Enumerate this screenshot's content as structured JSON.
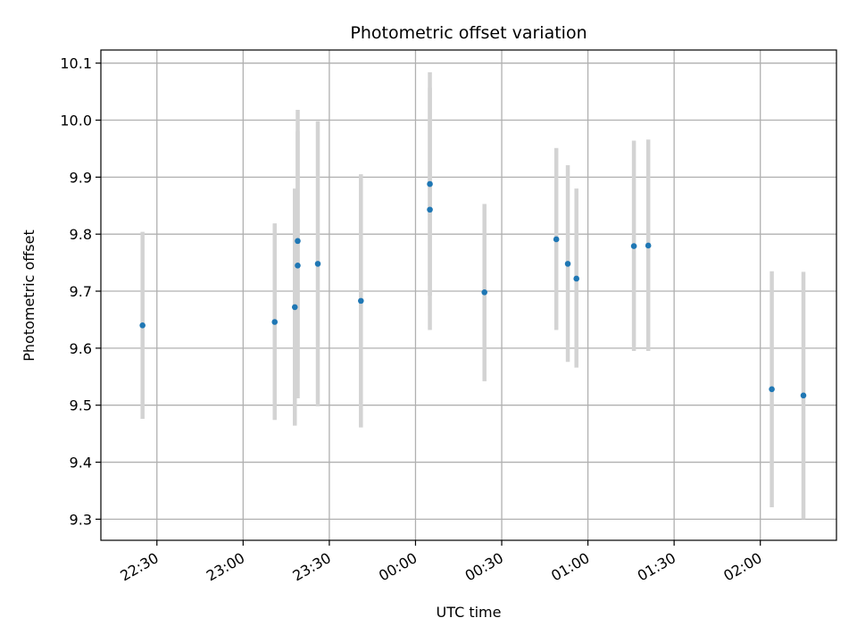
{
  "chart_data": {
    "type": "scatter",
    "title": "Photometric offset variation",
    "xlabel": "UTC time",
    "ylabel": "Photometric offset",
    "grid": true,
    "x_tick_labels": [
      "22:30",
      "23:00",
      "23:30",
      "00:00",
      "00:30",
      "01:00",
      "01:30",
      "02:00"
    ],
    "x_tick_minutes": [
      -90,
      -60,
      -30,
      0,
      30,
      60,
      90,
      120
    ],
    "xlim_minutes": [
      -109.5,
      146.5
    ],
    "y_ticks": [
      9.3,
      9.4,
      9.5,
      9.6,
      9.7,
      9.8,
      9.9,
      10.0,
      10.1
    ],
    "y_tick_labels": [
      "9.3",
      "9.4",
      "9.5",
      "9.6",
      "9.7",
      "9.8",
      "9.9",
      "10.0",
      "10.1"
    ],
    "ylim": [
      9.263,
      10.123
    ],
    "colors": {
      "point": "#1f77b4",
      "errorbar": "#d3d3d3",
      "grid": "#b0b0b0"
    },
    "points": [
      {
        "t": "22:25",
        "y": 9.64,
        "ylo": 9.476,
        "yhi": 9.804
      },
      {
        "t": "23:11",
        "y": 9.646,
        "ylo": 9.474,
        "yhi": 9.819
      },
      {
        "t": "23:18",
        "y": 9.672,
        "ylo": 9.464,
        "yhi": 9.88
      },
      {
        "t": "23:19",
        "y": 9.745,
        "ylo": 9.56,
        "yhi": 9.98
      },
      {
        "t": "23:19",
        "y": 9.788,
        "ylo": 9.512,
        "yhi": 10.018
      },
      {
        "t": "23:26",
        "y": 9.748,
        "ylo": 9.498,
        "yhi": 9.998
      },
      {
        "t": "23:41",
        "y": 9.683,
        "ylo": 9.461,
        "yhi": 9.905
      },
      {
        "t": "00:05",
        "y": 9.888,
        "ylo": 9.692,
        "yhi": 10.084
      },
      {
        "t": "00:05",
        "y": 9.843,
        "ylo": 9.632,
        "yhi": 10.057
      },
      {
        "t": "00:24",
        "y": 9.698,
        "ylo": 9.542,
        "yhi": 9.853
      },
      {
        "t": "00:49",
        "y": 9.791,
        "ylo": 9.632,
        "yhi": 9.951
      },
      {
        "t": "00:53",
        "y": 9.748,
        "ylo": 9.576,
        "yhi": 9.921
      },
      {
        "t": "00:56",
        "y": 9.722,
        "ylo": 9.566,
        "yhi": 9.88
      },
      {
        "t": "01:16",
        "y": 9.779,
        "ylo": 9.595,
        "yhi": 9.964
      },
      {
        "t": "01:21",
        "y": 9.78,
        "ylo": 9.595,
        "yhi": 9.966
      },
      {
        "t": "02:04",
        "y": 9.528,
        "ylo": 9.321,
        "yhi": 9.735
      },
      {
        "t": "02:15",
        "y": 9.517,
        "ylo": 9.3,
        "yhi": 9.734
      }
    ]
  }
}
